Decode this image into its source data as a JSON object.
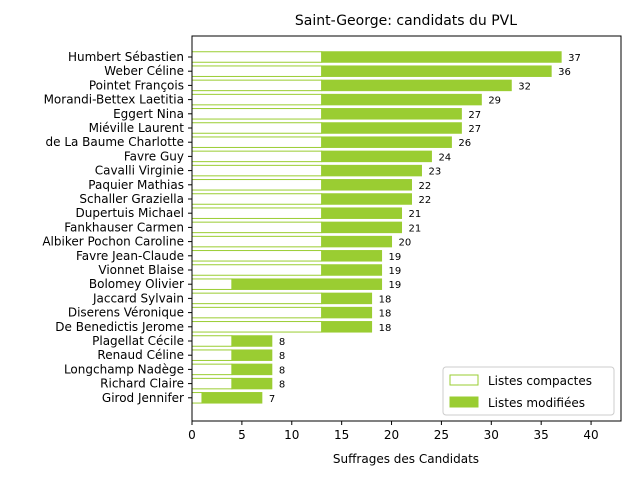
{
  "chart_data": {
    "type": "bar",
    "orientation": "horizontal",
    "stacked": true,
    "title": "Saint-George: candidats du PVL",
    "xlabel": "Suffrages des Candidats",
    "ylabel": "",
    "xlim": [
      0,
      43
    ],
    "xticks": [
      0,
      5,
      10,
      15,
      20,
      25,
      30,
      35,
      40
    ],
    "grid": false,
    "legend_position": "lower-right",
    "categories": [
      "Humbert Sébastien",
      "Weber Céline",
      "Pointet François",
      "Morandi-Bettex Laetitia",
      "Eggert Nina",
      "Miéville Laurent",
      "de La Baume Charlotte",
      "Favre Guy",
      "Cavalli Virginie",
      "Paquier Mathias",
      "Schaller Graziella",
      "Dupertuis Michael",
      "Fankhauser Carmen",
      "Albiker Pochon Caroline",
      "Favre Jean-Claude",
      "Vionnet Blaise",
      "Bolomey Olivier",
      "Jaccard Sylvain",
      "Diserens Véronique",
      "De Benedictis Jerome",
      "Plagellat Cécile",
      "Renaud Céline",
      "Longchamp Nadège",
      "Richard Claire",
      "Girod Jennifer"
    ],
    "series": [
      {
        "name": "Listes compactes",
        "color": "#9acd32",
        "style": "outline",
        "values": [
          13,
          13,
          13,
          13,
          13,
          13,
          13,
          13,
          13,
          13,
          13,
          13,
          13,
          13,
          13,
          13,
          4,
          13,
          13,
          13,
          4,
          4,
          4,
          4,
          1
        ]
      },
      {
        "name": "Listes modifiées",
        "color": "#9acd32",
        "style": "filled",
        "values": [
          24,
          23,
          19,
          16,
          14,
          14,
          13,
          11,
          10,
          9,
          9,
          8,
          8,
          7,
          6,
          6,
          15,
          5,
          5,
          5,
          4,
          4,
          4,
          4,
          6
        ]
      }
    ],
    "totals": [
      37,
      36,
      32,
      29,
      27,
      27,
      26,
      24,
      23,
      22,
      22,
      21,
      21,
      20,
      19,
      19,
      19,
      18,
      18,
      18,
      8,
      8,
      8,
      8,
      7
    ]
  }
}
